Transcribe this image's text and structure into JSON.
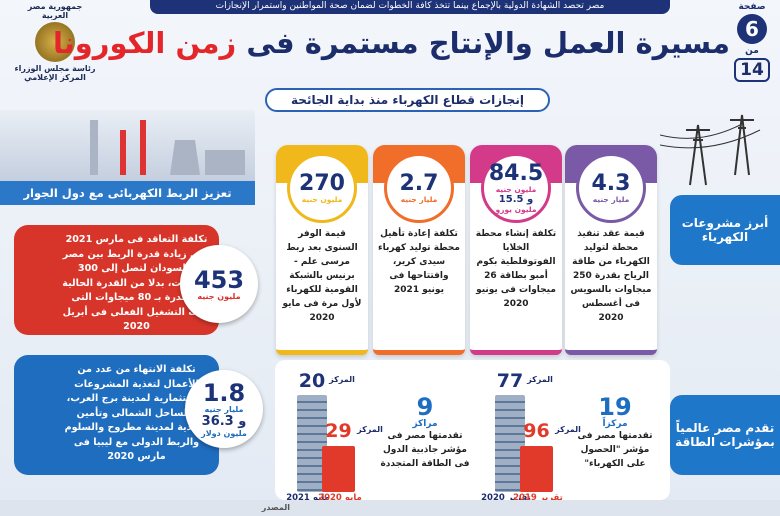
{
  "header": {
    "banner": "مصر تحصد الشهادة الدولية بالإجماع بينما تتخذ كافة الخطوات لضمان صحة المواطنين واستمرار الإنجازات",
    "title_main": "مسيرة العمل والإنتاج مستمرة فى",
    "title_highlight": "زمن الكورونا",
    "subtitle": "إنجازات قطاع الكهرباء منذ بداية الجائحة",
    "page_label": "صفحة",
    "page": "6",
    "of_label": "من",
    "total": "14",
    "logo": [
      "جمهورية مصر العربية",
      "رئاسة مجلس الوزراء",
      "المركز الإعلامي"
    ]
  },
  "sections": {
    "projects": "أبرز مشروعات الكهرباء",
    "rankings": "تقدم مصر عالمياً بمؤشرات الطاقة",
    "interconnection": "تعزيز الربط الكهربائى مع دول الجوار"
  },
  "cards": [
    {
      "value": "4.3",
      "unit": "مليار جنيه",
      "text": "قيمة عقد تنفيذ محطة لتوليد الكهرباء من طاقة الرياح بقدرة 250 ميجاوات بالسويس فى أغسطس 2020"
    },
    {
      "value": "84.5",
      "unit": "مليون جنيه",
      "extra_value": "و 15.5",
      "extra_unit": "مليون يورو",
      "text": "تكلفة إنشاء محطة الخلايا الفوتوفلطية بكوم أمبو بطاقة 26 ميجاوات فى يونيو 2020"
    },
    {
      "value": "2.7",
      "unit": "مليار جنيه",
      "text": "تكلفة إعادة تأهيل محطة توليد كهرباء سيدى كرير، وافتتاحها فى يونيو 2021"
    },
    {
      "value": "270",
      "unit": "مليون جنيه",
      "text": "قيمة الوفر السنوى بعد ربط مرسى علم - برنيس بالشبكة القومية للكهرباء لأول مرة فى مايو 2020"
    }
  ],
  "interconnection": [
    {
      "value": "453",
      "unit": "مليون جنيه",
      "text": "تكلفة التعاقد فى مارس 2021 على زيادة قدرة الربط بين مصر والسودان لتصل إلى 300 ميجاوات، بدلا من القدرة الحالية المقدرة بـ 80 ميجاوات التى بدأت التشغيل الفعلى فى أبريل 2020"
    },
    {
      "value": "1.8",
      "unit": "مليار جنيه",
      "extra_value": "و 36.3",
      "extra_unit": "مليون دولار",
      "text": "تكلفة الانتهاء من عدد من الأعمال لتغذية المشروعات الاستثمارية لمدينة برج العرب، والساحل الشمالى وتأمين التغذية لمدينة مطروح والسلوم والربط الدولى مع ليبيا فى مارس 2020"
    }
  ],
  "rankings": [
    {
      "gain": "19",
      "gain_unit": "مركزاً",
      "text": "تقدمتها مصر فى مؤشر \"الحصول على الكهرباء\"",
      "new_label": "المركز",
      "new_rank": "77",
      "new_period": "تقرير 2020",
      "old_label": "المركز",
      "old_rank": "96",
      "old_period": "تقرير 2019"
    },
    {
      "gain": "9",
      "gain_unit": "مراكز",
      "text": "تقدمتها مصر فى مؤشر جاذبية الدول فى الطاقة المتجددة",
      "new_label": "المركز",
      "new_rank": "20",
      "new_period": "مايو 2021",
      "old_label": "المركز",
      "old_rank": "29",
      "old_period": "مايو 2020"
    }
  ],
  "footer": {
    "source": "المصدر"
  }
}
